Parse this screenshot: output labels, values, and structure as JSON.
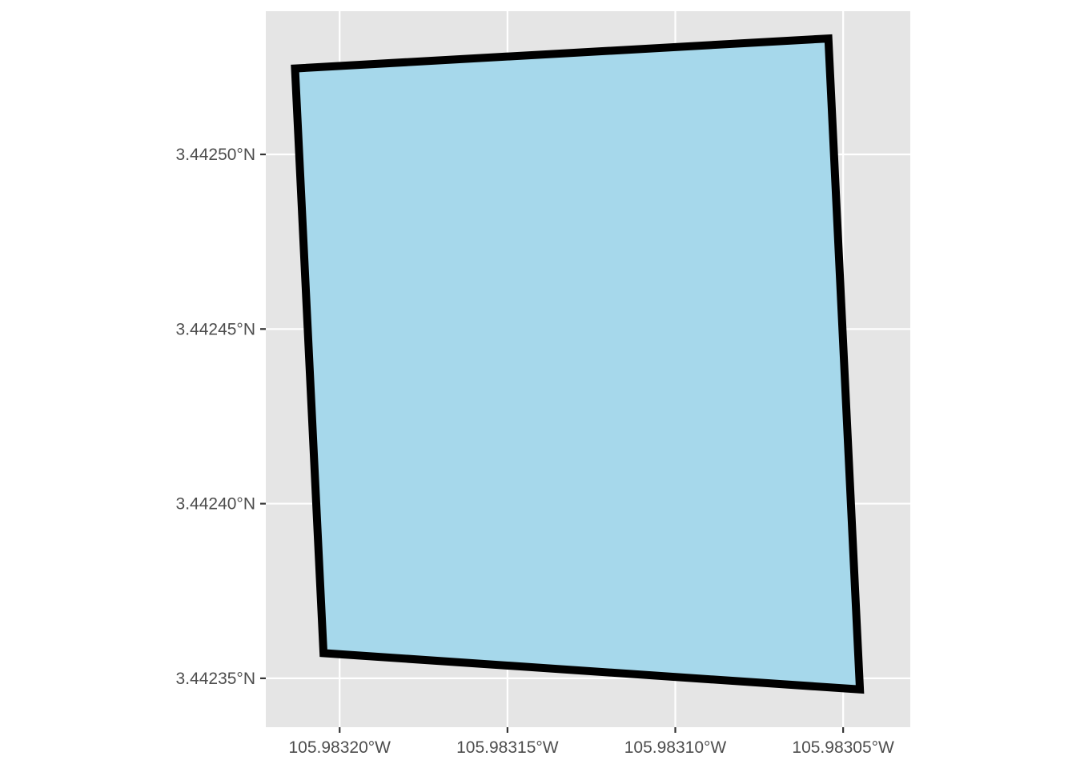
{
  "chart_data": {
    "type": "map",
    "title": "",
    "xlabel": "",
    "ylabel": "",
    "grid": true,
    "legend": "none",
    "xlim": [
      -105.983222,
      -105.98303
    ],
    "ylim": [
      3.442336,
      3.442541
    ],
    "x_ticks": [
      {
        "value": -105.9832,
        "label": "105.98320°W"
      },
      {
        "value": -105.98315,
        "label": "105.98315°W"
      },
      {
        "value": -105.9831,
        "label": "105.98310°W"
      },
      {
        "value": -105.98305,
        "label": "105.98305°W"
      }
    ],
    "y_ticks": [
      {
        "value": 3.44235,
        "label": "3.44235°N"
      },
      {
        "value": 3.4424,
        "label": "3.44240°N"
      },
      {
        "value": 3.44245,
        "label": "3.44245°N"
      },
      {
        "value": 3.4425,
        "label": "3.44250°N"
      }
    ],
    "polygon": {
      "vertices": [
        {
          "lon": -105.9832133,
          "lat": 3.4425246
        },
        {
          "lon": -105.9830544,
          "lat": 3.4425332
        },
        {
          "lon": -105.983045,
          "lat": 3.4423468
        },
        {
          "lon": -105.9832048,
          "lat": 3.4423572
        }
      ],
      "fill": "#a6d8eb",
      "stroke": "#000000"
    },
    "colors": {
      "panel": "#e5e5e5",
      "grid": "#ffffff",
      "axis_text": "#4d4d4d",
      "tick_mark": "#333333"
    }
  }
}
